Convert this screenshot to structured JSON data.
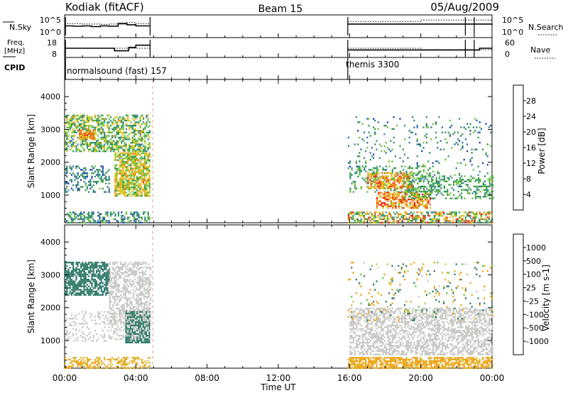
{
  "header": {
    "station": "Kodiak (fitACF)",
    "beam": "Beam 15",
    "date": "05/Aug/2009"
  },
  "nsky_panel": {
    "left_label": "N.Sky",
    "right_label": "N.Search",
    "left_ticks": [
      "10^5",
      "10^0"
    ],
    "right_ticks": [
      "10^5",
      "10^0"
    ]
  },
  "freq_panel": {
    "left_label_line1": "Freq.",
    "left_label_line2": "[MHz]",
    "right_label": "Nave",
    "left_ticks": [
      "18",
      "8"
    ],
    "right_ticks": [
      "60",
      "0"
    ]
  },
  "cpid_panel": {
    "label": "CPID",
    "modes": [
      "normalsound (fast) 157",
      "themis 3300"
    ]
  },
  "colors": {
    "power_scale": [
      "#0000ff",
      "#1c3fb0",
      "#2c6ea0",
      "#3a8a78",
      "#2f9a50",
      "#69c23a",
      "#d8c820",
      "#f0a010",
      "#f06010",
      "#f02a10",
      "#e01010"
    ],
    "velocity_scale": [
      "#e01010",
      "#f06010",
      "#f0a010",
      "#e0b838",
      "#cccccc",
      "#cccccc",
      "#5cc83a",
      "#2f9a50",
      "#2f7a6a",
      "#2050a0",
      "#0000ff"
    ],
    "ground_scatter": "#c8c8c4"
  },
  "chart_data": [
    {
      "type": "line",
      "title": "N.Sky / N.Search",
      "x_unit": "hours UT",
      "xlim": [
        0,
        24
      ],
      "ylim": [
        0,
        5
      ],
      "series": [
        {
          "name": "N.Sky",
          "x": [
            0,
            0.5,
            1,
            1.5,
            2,
            2.5,
            3,
            3.5,
            4,
            4.8,
            15.9,
            16.5,
            17,
            18,
            19,
            20,
            21,
            22,
            22.5,
            23,
            24
          ],
          "y": [
            2.6,
            2.5,
            2.6,
            2.4,
            2.6,
            2.5,
            3.2,
            2.9,
            2.6,
            2.6,
            3.1,
            3.1,
            3.1,
            3.1,
            3.1,
            3.1,
            3.1,
            3.1,
            3.1,
            3.1,
            3.2
          ]
        },
        {
          "name": "N.Search",
          "x": [
            0,
            1,
            2,
            2.5,
            3,
            3.5,
            4,
            4.8,
            15.9,
            17,
            18,
            19,
            20,
            21,
            22,
            23,
            24
          ],
          "y": [
            3.2,
            3.1,
            3.0,
            3.1,
            3.4,
            3.5,
            3.2,
            3.0,
            3.8,
            3.8,
            3.8,
            3.8,
            4.2,
            4.2,
            4.2,
            4.2,
            4.1
          ]
        }
      ]
    },
    {
      "type": "line",
      "title": "Freq. [MHz] / Nave",
      "x_unit": "hours UT",
      "xlim": [
        0,
        24
      ],
      "ylim_left": [
        8,
        18
      ],
      "ylim_right": [
        0,
        60
      ],
      "series": [
        {
          "name": "Freq.",
          "x": [
            0,
            1.5,
            2.8,
            3.6,
            4.0,
            4.8,
            15.9,
            20,
            22.5,
            23.3,
            24
          ],
          "y": [
            13,
            13,
            11.5,
            13.5,
            14.8,
            14.8,
            12,
            12,
            12,
            13,
            13
          ]
        },
        {
          "name": "Nave",
          "x": [
            0,
            2.5,
            3.0,
            4.8,
            15.9,
            18,
            20,
            24
          ],
          "y": [
            30,
            30,
            30,
            30,
            30,
            30,
            25,
            25
          ]
        }
      ]
    },
    {
      "type": "heatmap",
      "title": "Power",
      "ylabel": "Slant Range [km]",
      "colorbar_label": "Power [dB]",
      "colorbar_ticks": [
        "28",
        "24",
        "20",
        "16",
        "12",
        "8",
        "4"
      ],
      "xlim": [
        0,
        24
      ],
      "ylim": [
        180,
        4500
      ],
      "x_ticks": [
        "00:00",
        "04:00",
        "08:00",
        "12:00",
        "16:00",
        "20:00",
        "00:00"
      ],
      "y_ticks": [
        "4000",
        "3000",
        "2000",
        "1000"
      ],
      "y_tick_values": [
        4000,
        3000,
        2000,
        1000
      ],
      "regions": [
        {
          "t0": 0,
          "t1": 4.8,
          "r0": 2350,
          "r1": 3450,
          "density": 0.55,
          "v0": 8,
          "v1": 20
        },
        {
          "t0": 0.8,
          "t1": 1.6,
          "r0": 2700,
          "r1": 3000,
          "density": 0.8,
          "v0": 18,
          "v1": 26
        },
        {
          "t0": 0,
          "t1": 2.5,
          "r0": 1100,
          "r1": 1900,
          "density": 0.35,
          "v0": 4,
          "v1": 14
        },
        {
          "t0": 2.8,
          "t1": 4.8,
          "r0": 1000,
          "r1": 2300,
          "density": 0.75,
          "v0": 12,
          "v1": 22
        },
        {
          "t0": 0,
          "t1": 4.8,
          "r0": 180,
          "r1": 500,
          "density": 0.4,
          "v0": 4,
          "v1": 16
        },
        {
          "t0": 15.9,
          "t1": 24,
          "r0": 180,
          "r1": 500,
          "density": 0.55,
          "v0": 8,
          "v1": 26
        },
        {
          "t0": 16,
          "t1": 21,
          "r0": 1100,
          "r1": 1900,
          "density": 0.25,
          "v0": 8,
          "v1": 16
        },
        {
          "t0": 17.5,
          "t1": 20.5,
          "r0": 600,
          "r1": 1100,
          "density": 0.6,
          "v0": 16,
          "v1": 28
        },
        {
          "t0": 17,
          "t1": 19.5,
          "r0": 1200,
          "r1": 1700,
          "density": 0.6,
          "v0": 16,
          "v1": 26
        },
        {
          "t0": 19,
          "t1": 24,
          "r0": 900,
          "r1": 1600,
          "density": 0.35,
          "v0": 8,
          "v1": 16
        },
        {
          "t0": 15.9,
          "t1": 24,
          "r0": 1600,
          "r1": 3400,
          "density": 0.07,
          "v0": 4,
          "v1": 16
        }
      ]
    },
    {
      "type": "heatmap",
      "title": "Velocity",
      "ylabel": "Slant Range [km]",
      "colorbar_label": "Velocity [m s-1]",
      "colorbar_ticks": [
        "1000",
        "500",
        "100",
        "25",
        "-25",
        "-100",
        "-500",
        "-1000"
      ],
      "xlim": [
        0,
        24
      ],
      "ylim": [
        180,
        4500
      ],
      "x_ticks": [
        "00:00",
        "04:00",
        "08:00",
        "12:00",
        "16:00",
        "20:00",
        "00:00"
      ],
      "y_ticks": [
        "4000",
        "3000",
        "2000",
        "1000"
      ],
      "y_tick_values": [
        4000,
        3000,
        2000,
        1000
      ],
      "xlabel": "Time UT",
      "regions": [
        {
          "t0": 0,
          "t1": 2.5,
          "r0": 2400,
          "r1": 3400,
          "density": 0.7,
          "v0": 100,
          "v1": 500
        },
        {
          "t0": 2.5,
          "t1": 4.8,
          "r0": 1500,
          "r1": 3400,
          "density": 0.55,
          "v0": -20,
          "v1": 20
        },
        {
          "t0": 3.4,
          "t1": 4.8,
          "r0": 950,
          "r1": 1900,
          "density": 0.8,
          "v0": 100,
          "v1": 400
        },
        {
          "t0": 0,
          "t1": 4.8,
          "r0": 1000,
          "r1": 1900,
          "density": 0.25,
          "v0": -20,
          "v1": 20
        },
        {
          "t0": 0,
          "t1": 4.8,
          "r0": 180,
          "r1": 500,
          "density": 0.45,
          "v0": -150,
          "v1": -30
        },
        {
          "t0": 15.9,
          "t1": 24,
          "r0": 180,
          "r1": 500,
          "density": 0.7,
          "v0": -200,
          "v1": -30
        },
        {
          "t0": 16,
          "t1": 24,
          "r0": 600,
          "r1": 2000,
          "density": 0.55,
          "v0": -20,
          "v1": 20
        },
        {
          "t0": 15.9,
          "t1": 24,
          "r0": 1600,
          "r1": 3400,
          "density": 0.07,
          "v0": -300,
          "v1": 300
        }
      ]
    }
  ]
}
